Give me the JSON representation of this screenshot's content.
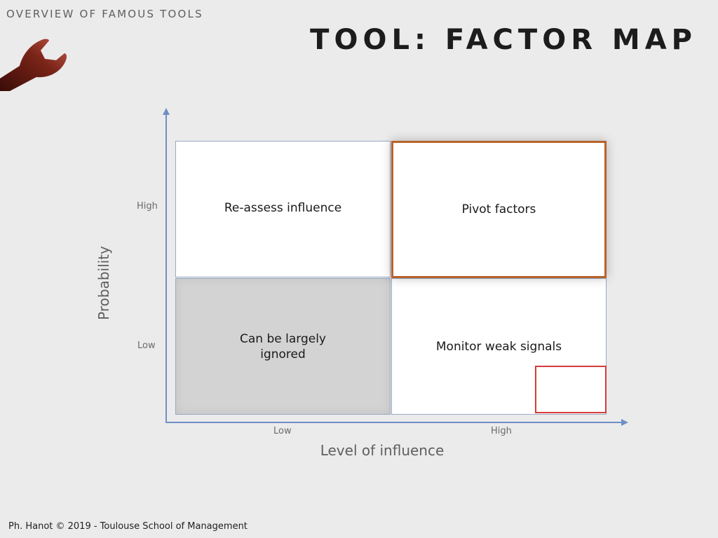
{
  "header": {
    "section": "OVERVIEW OF FAMOUS TOOLS",
    "title": "TOOL: FACTOR MAP",
    "logo_icon": "wrench-icon"
  },
  "matrix": {
    "y_axis_label": "Probability",
    "x_axis_label": "Level of influence",
    "y_ticks": [
      "High",
      "Low"
    ],
    "x_ticks": [
      "Low",
      "High"
    ],
    "quadrants": {
      "top_left": "Re-assess influence",
      "top_right": "Pivot factors",
      "bottom_left": "Can be largely ignored",
      "bottom_right": "Monitor weak signals"
    },
    "colors": {
      "axis": "#6f8fc4",
      "pivot_border": "#b8632b",
      "highlight_box": "#d63a3a",
      "ignored_fill": "#d3d3d3"
    }
  },
  "footer": {
    "credit": "Ph. Hanot © 2019  -  Toulouse School of Management"
  }
}
